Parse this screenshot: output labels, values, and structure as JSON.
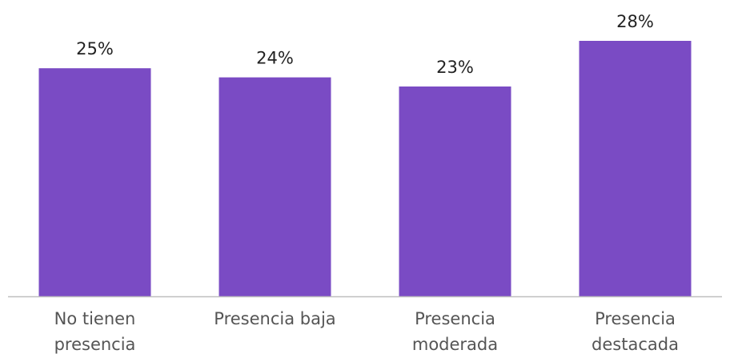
{
  "chart_data": {
    "type": "bar",
    "categories": [
      [
        "No tienen",
        "presencia"
      ],
      [
        "Presencia baja"
      ],
      [
        "Presencia",
        "moderada"
      ],
      [
        "Presencia",
        "destacada"
      ]
    ],
    "values": [
      25,
      24,
      23,
      28
    ],
    "value_labels": [
      "25%",
      "24%",
      "23%",
      "28%"
    ],
    "ylim": [
      0,
      30
    ],
    "grid": false,
    "legend": "none",
    "title": "",
    "xlabel": "",
    "ylabel": "",
    "colors": {
      "bar": "#7a4bc4",
      "axis": "#bfbfbf",
      "value_text": "#222222",
      "category_text": "#555555"
    }
  }
}
